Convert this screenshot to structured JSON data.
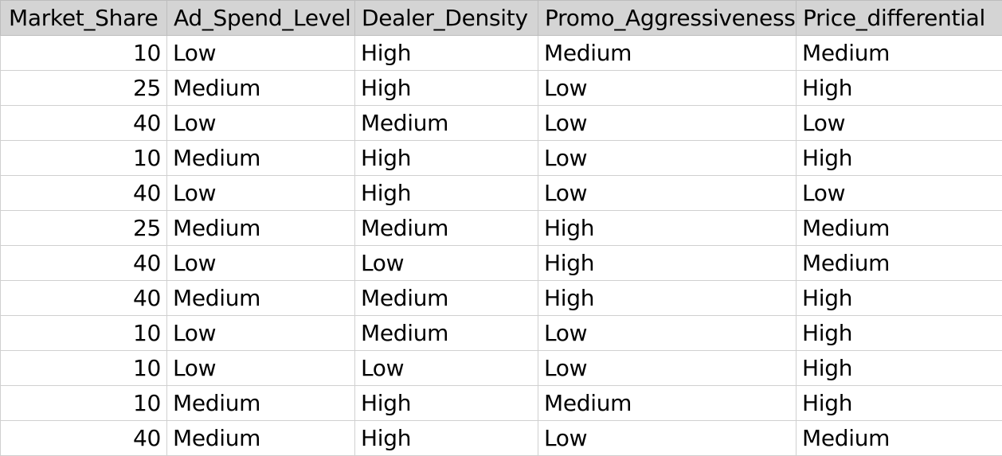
{
  "table": {
    "columns": [
      "Market_Share",
      "Ad_Spend_Level",
      "Dealer_Density",
      "Promo_Aggressiveness",
      "Price_differential"
    ],
    "rows": [
      [
        "10",
        "Low",
        "High",
        "Medium",
        "Medium"
      ],
      [
        "25",
        "Medium",
        "High",
        "Low",
        "High"
      ],
      [
        "40",
        "Low",
        "Medium",
        "Low",
        "Low"
      ],
      [
        "10",
        "Medium",
        "High",
        "Low",
        "High"
      ],
      [
        "40",
        "Low",
        "High",
        "Low",
        "Low"
      ],
      [
        "25",
        "Medium",
        "Medium",
        "High",
        "Medium"
      ],
      [
        "40",
        "Low",
        "Low",
        "High",
        "Medium"
      ],
      [
        "40",
        "Medium",
        "Medium",
        "High",
        "High"
      ],
      [
        "10",
        "Low",
        "Medium",
        "Low",
        "High"
      ],
      [
        "10",
        "Low",
        "Low",
        "Low",
        "High"
      ],
      [
        "10",
        "Medium",
        "High",
        "Medium",
        "High"
      ],
      [
        "40",
        "Medium",
        "High",
        "Low",
        "Medium"
      ]
    ]
  }
}
